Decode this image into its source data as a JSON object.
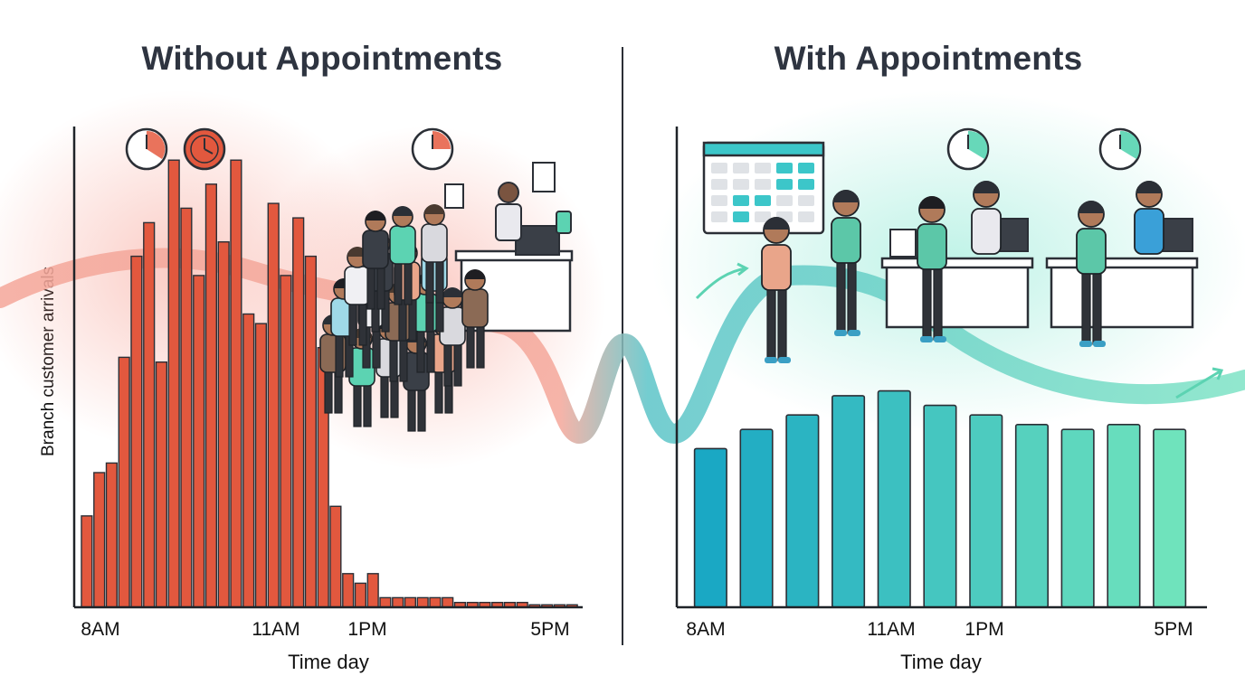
{
  "panels": {
    "left": {
      "title": "Without Appointments"
    },
    "right": {
      "title": "With Appointments"
    }
  },
  "colors": {
    "without_bar": "#e2583e",
    "with_bar_start": "#1aa8c4",
    "with_bar_end": "#6fe3bc",
    "axis": "#1f2328",
    "wave_red": "#f4a79a",
    "wave_teal": "#5cd3b2"
  },
  "chart_data": [
    {
      "type": "bar",
      "panel": "Without Appointments",
      "title": "Without Appointments",
      "xlabel": "Time day",
      "ylabel": "Branch customer arrivals",
      "x_tick_labels": [
        "8AM",
        "11AM",
        "1PM",
        "5PM"
      ],
      "x_tick_at_category": [
        0,
        18,
        24,
        36
      ],
      "grid": false,
      "values": [
        19,
        28,
        30,
        52,
        73,
        80,
        51,
        93,
        83,
        69,
        88,
        76,
        93,
        61,
        59,
        84,
        69,
        81,
        73,
        54,
        21,
        7,
        5,
        7,
        2,
        2,
        2,
        2,
        2,
        2,
        1,
        1,
        1,
        1,
        1,
        1,
        0.5,
        0.5,
        0.5,
        0.5
      ],
      "ylim": [
        0,
        100
      ],
      "icons": [
        "clock-icon",
        "clock-icon",
        "clock-icon",
        "crowded-queue-illustration"
      ]
    },
    {
      "type": "bar",
      "panel": "With Appointments",
      "title": "With Appointments",
      "xlabel": "Time day",
      "ylabel": "",
      "x_tick_labels": [
        "8AM",
        "11AM",
        "1PM",
        "5PM"
      ],
      "x_tick_at_category": [
        0,
        4,
        6,
        10
      ],
      "grid": false,
      "values": [
        33,
        37,
        40,
        44,
        45,
        42,
        40,
        38,
        37,
        38,
        37
      ],
      "ylim": [
        0,
        100
      ],
      "icons": [
        "calendar-icon",
        "clock-icon",
        "clock-icon",
        "served-customers-illustration"
      ]
    }
  ]
}
